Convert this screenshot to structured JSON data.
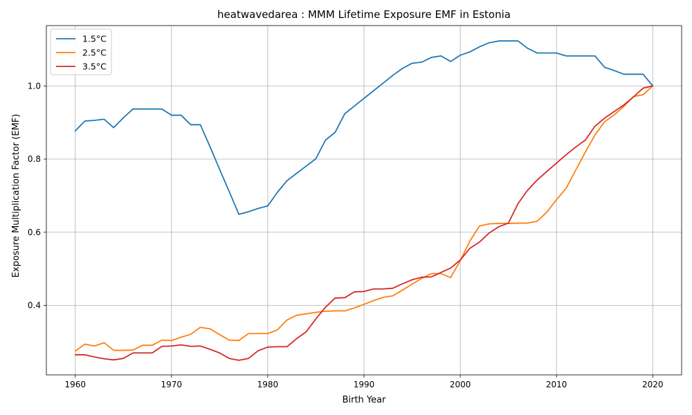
{
  "chart_data": {
    "type": "line",
    "title": "heatwavedarea : MMM Lifetime Exposure EMF in Estonia",
    "xlabel": "Birth Year",
    "ylabel": "Exposure Multiplication Factor (EMF)",
    "xlim": [
      1957,
      2023
    ],
    "ylim": [
      0.21,
      1.165
    ],
    "xticks": [
      1960,
      1970,
      1980,
      1990,
      2000,
      2010,
      2020
    ],
    "yticks": [
      0.4,
      0.6,
      0.8,
      1.0
    ],
    "xtick_labels": [
      "1960",
      "1970",
      "1980",
      "1990",
      "2000",
      "2010",
      "2020"
    ],
    "ytick_labels": [
      "0.4",
      "0.6",
      "0.8",
      "1.0"
    ],
    "grid": true,
    "legend_position": "top-left",
    "x": [
      1960,
      1961,
      1962,
      1963,
      1964,
      1965,
      1966,
      1967,
      1968,
      1969,
      1970,
      1971,
      1972,
      1973,
      1974,
      1975,
      1976,
      1977,
      1978,
      1979,
      1980,
      1981,
      1982,
      1983,
      1984,
      1985,
      1986,
      1987,
      1988,
      1989,
      1990,
      1991,
      1992,
      1993,
      1994,
      1995,
      1996,
      1997,
      1998,
      1999,
      2000,
      2001,
      2002,
      2003,
      2004,
      2005,
      2006,
      2007,
      2008,
      2009,
      2010,
      2011,
      2012,
      2013,
      2014,
      2015,
      2016,
      2017,
      2018,
      2019,
      2020
    ],
    "series": [
      {
        "name": "1.5°C",
        "color": "#1f77b4",
        "values": [
          0.877,
          0.904,
          0.906,
          0.909,
          0.886,
          0.913,
          0.937,
          0.937,
          0.937,
          0.937,
          0.92,
          0.92,
          0.894,
          0.894,
          0.834,
          0.772,
          0.711,
          0.649,
          0.656,
          0.665,
          0.672,
          0.709,
          0.741,
          0.761,
          0.781,
          0.801,
          0.852,
          0.873,
          0.924,
          0.945,
          0.966,
          0.987,
          1.008,
          1.029,
          1.048,
          1.062,
          1.065,
          1.078,
          1.082,
          1.067,
          1.084,
          1.093,
          1.107,
          1.118,
          1.123,
          1.123,
          1.123,
          1.103,
          1.09,
          1.09,
          1.09,
          1.082,
          1.082,
          1.082,
          1.082,
          1.051,
          1.042,
          1.032,
          1.032,
          1.032,
          1.0
        ]
      },
      {
        "name": "2.5°C",
        "color": "#ff7f0e",
        "values": [
          0.275,
          0.294,
          0.289,
          0.298,
          0.277,
          0.277,
          0.278,
          0.291,
          0.291,
          0.305,
          0.304,
          0.313,
          0.321,
          0.34,
          0.336,
          0.32,
          0.305,
          0.304,
          0.323,
          0.323,
          0.323,
          0.333,
          0.36,
          0.373,
          0.377,
          0.381,
          0.384,
          0.385,
          0.385,
          0.393,
          0.403,
          0.413,
          0.422,
          0.426,
          0.442,
          0.458,
          0.474,
          0.487,
          0.487,
          0.476,
          0.522,
          0.576,
          0.617,
          0.623,
          0.624,
          0.624,
          0.625,
          0.625,
          0.63,
          0.655,
          0.689,
          0.72,
          0.77,
          0.819,
          0.866,
          0.902,
          0.921,
          0.944,
          0.971,
          0.976,
          1.0
        ]
      },
      {
        "name": "3.5°C",
        "color": "#d62728",
        "values": [
          0.265,
          0.265,
          0.259,
          0.254,
          0.251,
          0.255,
          0.27,
          0.27,
          0.27,
          0.288,
          0.289,
          0.292,
          0.288,
          0.289,
          0.28,
          0.27,
          0.255,
          0.25,
          0.255,
          0.276,
          0.286,
          0.287,
          0.287,
          0.309,
          0.328,
          0.363,
          0.395,
          0.42,
          0.421,
          0.437,
          0.438,
          0.445,
          0.445,
          0.447,
          0.459,
          0.47,
          0.477,
          0.478,
          0.49,
          0.502,
          0.524,
          0.556,
          0.573,
          0.598,
          0.615,
          0.625,
          0.678,
          0.715,
          0.743,
          0.766,
          0.789,
          0.812,
          0.833,
          0.852,
          0.89,
          0.912,
          0.93,
          0.948,
          0.97,
          0.994,
          1.0
        ]
      }
    ]
  }
}
